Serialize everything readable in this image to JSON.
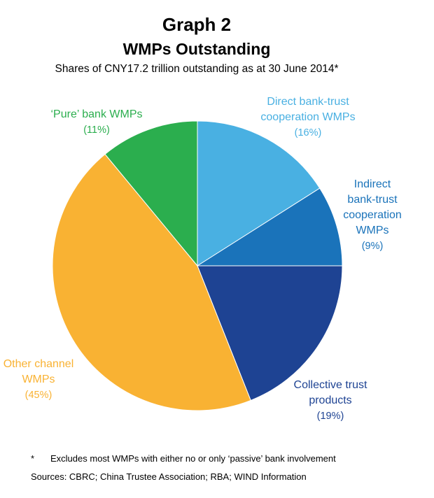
{
  "header": {
    "graph_number": "Graph 2",
    "title": "WMPs Outstanding",
    "subtitle": "Shares of CNY17.2 trillion outstanding as at 30 June 2014*"
  },
  "chart_data": {
    "type": "pie",
    "title": "WMPs Outstanding",
    "subtitle": "Shares of CNY17.2 trillion outstanding as at 30 June 2014*",
    "slices": [
      {
        "name": "Direct bank-trust cooperation WMPs",
        "lines": [
          "Direct bank-trust",
          "cooperation WMPs"
        ],
        "pct_label": "(16%)",
        "value": 16,
        "color": "#49B0E2"
      },
      {
        "name": "Indirect bank-trust cooperation WMPs",
        "lines": [
          "Indirect",
          "bank-trust",
          "cooperation",
          "WMPs"
        ],
        "pct_label": "(9%)",
        "value": 9,
        "color": "#1A73BA"
      },
      {
        "name": "Collective trust products",
        "lines": [
          "Collective trust",
          "products"
        ],
        "pct_label": "(19%)",
        "value": 19,
        "color": "#1E4393"
      },
      {
        "name": "Other channel WMPs",
        "lines": [
          "Other channel",
          "WMPs"
        ],
        "pct_label": "(45%)",
        "value": 45,
        "color": "#F9B233"
      },
      {
        "name": "'Pure' bank WMPs",
        "lines": [
          "‘Pure’ bank WMPs"
        ],
        "pct_label": "(11%)",
        "value": 11,
        "color": "#2BAE4E"
      }
    ]
  },
  "footer": {
    "footnote_marker": "*",
    "footnote_text": "Excludes most WMPs with either no or only ‘passive’ bank involvement",
    "sources": "Sources:  CBRC; China Trustee Association; RBA; WIND Information"
  }
}
